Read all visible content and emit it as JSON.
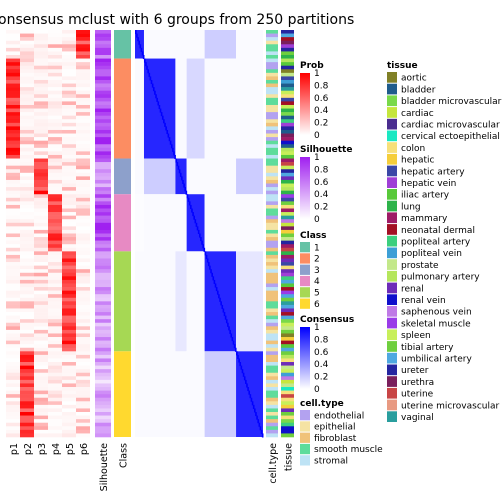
{
  "chart_data": {
    "type": "heatmap",
    "title": "onsensus mclust with 6 groups from 250 partitions",
    "class_colors": [
      "#66C2A5",
      "#FC8D62",
      "#8DA0CB",
      "#E78AC3",
      "#A6D854",
      "#FFD92F"
    ],
    "groups": [
      {
        "class": 1,
        "n": 8,
        "dominant_p": 6,
        "silhouette": 0.72
      },
      {
        "class": 2,
        "n": 28,
        "dominant_p": 1,
        "silhouette": 0.82
      },
      {
        "class": 3,
        "n": 10,
        "dominant_p": 3,
        "silhouette": 0.55
      },
      {
        "class": 4,
        "n": 16,
        "dominant_p": 4,
        "silhouette": 0.75
      },
      {
        "class": 5,
        "n": 28,
        "dominant_p": 5,
        "silhouette": 0.45
      },
      {
        "class": 6,
        "n": 24,
        "dominant_p": 2,
        "silhouette": 0.35
      }
    ],
    "prob_columns": [
      "p1",
      "p2",
      "p3",
      "p4",
      "p5",
      "p6"
    ],
    "annotation_columns": {
      "silhouette": "Silhouette",
      "class": "Class",
      "cell_type": "cell.type",
      "tissue": "tissue"
    },
    "legends": {
      "prob": {
        "title": "Prob",
        "ticks": [
          "1",
          "0.8",
          "0.6",
          "0.4",
          "0.2",
          "0"
        ],
        "low": "#FFFFFF",
        "high": "#FF0000"
      },
      "silhouette": {
        "title": "Silhouette",
        "ticks": [
          "1",
          "0.8",
          "0.6",
          "0.4",
          "0.2",
          "0"
        ],
        "low": "#FFFFFF",
        "high": "#A020F0"
      },
      "class": {
        "title": "Class",
        "labels": [
          "1",
          "2",
          "3",
          "4",
          "5",
          "6"
        ]
      },
      "consensus": {
        "title": "Consensus",
        "ticks": [
          "1",
          "0.8",
          "0.6",
          "0.4",
          "0.2",
          "0"
        ],
        "low": "#FFFFFF",
        "high": "#0000FF"
      },
      "cell_type": {
        "title": "cell.type",
        "labels": [
          "endothelial",
          "epithelial",
          "fibroblast",
          "smooth muscle",
          "stromal"
        ],
        "colors": [
          "#B3A2F0",
          "#F5E3A3",
          "#F0C27A",
          "#5EDC9B",
          "#BEE3F5"
        ]
      },
      "tissue": {
        "title": "tissue",
        "labels": [
          "aortic",
          "bladder",
          "bladder microvascular",
          "cardiac",
          "cardiac microvascular",
          "cervical ectoepithelial",
          "colon",
          "hepatic",
          "hepatic artery",
          "hepatic vein",
          "iliac artery",
          "lung",
          "mammary",
          "neonatal dermal",
          "popliteal artery",
          "popliteal vein",
          "prostate",
          "pulmonary artery",
          "renal",
          "renal vein",
          "saphenous vein",
          "skeletal muscle",
          "spleen",
          "tibial artery",
          "umbilical artery",
          "ureter",
          "urethra",
          "uterine",
          "uterine microvascular",
          "vaginal"
        ],
        "colors": [
          "#808026",
          "#1F5C8C",
          "#79D94A",
          "#C5E63E",
          "#4A2D8F",
          "#19E8C2",
          "#F7E07A",
          "#F5CE3B",
          "#3A47A6",
          "#9F3FD6",
          "#58C93A",
          "#2DB34A",
          "#9E1B66",
          "#A30F24",
          "#3CCF7E",
          "#3D9FD6",
          "#C3E88A",
          "#B5E65C",
          "#6D2CB8",
          "#0F0FCC",
          "#BF7AE6",
          "#9A3CE8",
          "#C8EF5A",
          "#6FCF3E",
          "#4FA8E0",
          "#2525A0",
          "#7A1F5C",
          "#C84545",
          "#E89A82",
          "#2A9E9E"
        ]
      }
    }
  }
}
